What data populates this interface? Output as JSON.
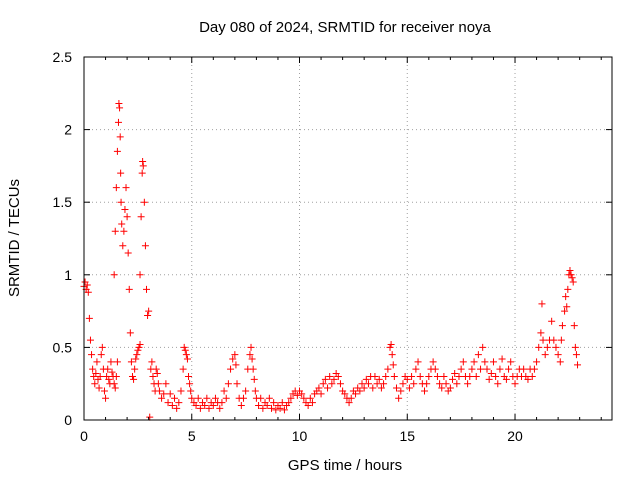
{
  "chart_data": {
    "type": "scatter",
    "title": "Day 080 of 2024, SRMTID for receiver noya",
    "xlabel": "GPS time / hours",
    "ylabel": "SRMTID / TECUs",
    "xlim": [
      0,
      24.5
    ],
    "ylim": [
      0,
      2.5
    ],
    "grid": true,
    "marker": "+",
    "marker_color": "#ff0000",
    "x_ticks": [
      {
        "value": 0,
        "label": "0"
      },
      {
        "value": 5,
        "label": "5"
      },
      {
        "value": 10,
        "label": "10"
      },
      {
        "value": 15,
        "label": "15"
      },
      {
        "value": 20,
        "label": "20"
      }
    ],
    "y_ticks": [
      {
        "value": 0,
        "label": "0"
      },
      {
        "value": 0.5,
        "label": "0.5"
      },
      {
        "value": 1,
        "label": "1"
      },
      {
        "value": 1.5,
        "label": "1.5"
      },
      {
        "value": 2,
        "label": "2"
      },
      {
        "value": 2.5,
        "label": "2.5"
      }
    ],
    "series": [
      {
        "name": "SRMTID",
        "points": [
          [
            0.0,
            0.92
          ],
          [
            0.05,
            0.95
          ],
          [
            0.1,
            0.9
          ],
          [
            0.15,
            0.93
          ],
          [
            0.2,
            0.88
          ],
          [
            0.25,
            0.7
          ],
          [
            0.3,
            0.55
          ],
          [
            0.35,
            0.45
          ],
          [
            0.4,
            0.35
          ],
          [
            0.45,
            0.3
          ],
          [
            0.5,
            0.25
          ],
          [
            0.55,
            0.32
          ],
          [
            0.6,
            0.4
          ],
          [
            0.65,
            0.28
          ],
          [
            0.7,
            0.22
          ],
          [
            0.75,
            0.3
          ],
          [
            0.8,
            0.45
          ],
          [
            0.85,
            0.5
          ],
          [
            0.9,
            0.35
          ],
          [
            0.95,
            0.2
          ],
          [
            1.0,
            0.15
          ],
          [
            1.05,
            0.3
          ],
          [
            1.1,
            0.35
          ],
          [
            1.15,
            0.28
          ],
          [
            1.2,
            0.25
          ],
          [
            1.25,
            0.4
          ],
          [
            1.3,
            0.33
          ],
          [
            1.35,
            0.3
          ],
          [
            1.4,
            0.25
          ],
          [
            1.45,
            0.22
          ],
          [
            1.5,
            0.3
          ],
          [
            1.55,
            0.4
          ],
          [
            1.4,
            1.0
          ],
          [
            1.45,
            1.3
          ],
          [
            1.5,
            1.6
          ],
          [
            1.55,
            1.85
          ],
          [
            1.6,
            2.05
          ],
          [
            1.62,
            2.18
          ],
          [
            1.65,
            2.15
          ],
          [
            1.68,
            1.95
          ],
          [
            1.7,
            1.7
          ],
          [
            1.72,
            1.5
          ],
          [
            1.75,
            1.35
          ],
          [
            1.8,
            1.2
          ],
          [
            1.85,
            1.3
          ],
          [
            1.9,
            1.45
          ],
          [
            1.95,
            1.6
          ],
          [
            2.0,
            1.4
          ],
          [
            2.05,
            1.15
          ],
          [
            2.1,
            0.9
          ],
          [
            2.15,
            0.6
          ],
          [
            2.2,
            0.4
          ],
          [
            2.25,
            0.3
          ],
          [
            2.3,
            0.28
          ],
          [
            2.35,
            0.35
          ],
          [
            2.4,
            0.42
          ],
          [
            2.45,
            0.45
          ],
          [
            2.5,
            0.48
          ],
          [
            2.55,
            0.5
          ],
          [
            2.6,
            0.52
          ],
          [
            2.6,
            1.0
          ],
          [
            2.65,
            1.4
          ],
          [
            2.7,
            1.7
          ],
          [
            2.72,
            1.78
          ],
          [
            2.75,
            1.75
          ],
          [
            2.8,
            1.5
          ],
          [
            2.85,
            1.2
          ],
          [
            2.9,
            0.9
          ],
          [
            2.95,
            0.72
          ],
          [
            3.0,
            0.75
          ],
          [
            3.05,
            0.02
          ],
          [
            3.1,
            0.35
          ],
          [
            3.15,
            0.4
          ],
          [
            3.2,
            0.3
          ],
          [
            3.25,
            0.25
          ],
          [
            3.3,
            0.2
          ],
          [
            3.35,
            0.35
          ],
          [
            3.4,
            0.32
          ],
          [
            3.45,
            0.25
          ],
          [
            3.5,
            0.2
          ],
          [
            3.6,
            0.15
          ],
          [
            3.7,
            0.18
          ],
          [
            3.8,
            0.25
          ],
          [
            3.9,
            0.12
          ],
          [
            4.0,
            0.18
          ],
          [
            4.1,
            0.1
          ],
          [
            4.2,
            0.15
          ],
          [
            4.3,
            0.08
          ],
          [
            4.4,
            0.12
          ],
          [
            4.5,
            0.2
          ],
          [
            4.6,
            0.35
          ],
          [
            4.65,
            0.5
          ],
          [
            4.7,
            0.48
          ],
          [
            4.75,
            0.45
          ],
          [
            4.8,
            0.42
          ],
          [
            4.85,
            0.3
          ],
          [
            4.9,
            0.25
          ],
          [
            4.95,
            0.2
          ],
          [
            5.0,
            0.15
          ],
          [
            5.1,
            0.12
          ],
          [
            5.2,
            0.1
          ],
          [
            5.3,
            0.15
          ],
          [
            5.4,
            0.08
          ],
          [
            5.5,
            0.12
          ],
          [
            5.6,
            0.1
          ],
          [
            5.7,
            0.15
          ],
          [
            5.8,
            0.08
          ],
          [
            5.9,
            0.12
          ],
          [
            6.0,
            0.1
          ],
          [
            6.1,
            0.15
          ],
          [
            6.2,
            0.12
          ],
          [
            6.3,
            0.08
          ],
          [
            6.4,
            0.12
          ],
          [
            6.5,
            0.2
          ],
          [
            6.6,
            0.15
          ],
          [
            6.7,
            0.25
          ],
          [
            6.8,
            0.35
          ],
          [
            6.9,
            0.42
          ],
          [
            7.0,
            0.45
          ],
          [
            7.05,
            0.38
          ],
          [
            7.1,
            0.25
          ],
          [
            7.2,
            0.15
          ],
          [
            7.3,
            0.1
          ],
          [
            7.4,
            0.15
          ],
          [
            7.5,
            0.2
          ],
          [
            7.6,
            0.35
          ],
          [
            7.7,
            0.45
          ],
          [
            7.75,
            0.5
          ],
          [
            7.8,
            0.42
          ],
          [
            7.85,
            0.35
          ],
          [
            7.9,
            0.28
          ],
          [
            7.95,
            0.2
          ],
          [
            8.0,
            0.15
          ],
          [
            8.1,
            0.1
          ],
          [
            8.2,
            0.15
          ],
          [
            8.3,
            0.08
          ],
          [
            8.4,
            0.12
          ],
          [
            8.5,
            0.1
          ],
          [
            8.6,
            0.15
          ],
          [
            8.7,
            0.08
          ],
          [
            8.8,
            0.12
          ],
          [
            8.9,
            0.07
          ],
          [
            9.0,
            0.1
          ],
          [
            9.1,
            0.08
          ],
          [
            9.2,
            0.12
          ],
          [
            9.3,
            0.07
          ],
          [
            9.4,
            0.1
          ],
          [
            9.5,
            0.12
          ],
          [
            9.6,
            0.15
          ],
          [
            9.7,
            0.18
          ],
          [
            9.8,
            0.2
          ],
          [
            9.9,
            0.17
          ],
          [
            10.0,
            0.2
          ],
          [
            10.1,
            0.18
          ],
          [
            10.2,
            0.15
          ],
          [
            10.3,
            0.12
          ],
          [
            10.4,
            0.1
          ],
          [
            10.5,
            0.15
          ],
          [
            10.6,
            0.12
          ],
          [
            10.7,
            0.18
          ],
          [
            10.8,
            0.2
          ],
          [
            10.9,
            0.22
          ],
          [
            11.0,
            0.18
          ],
          [
            11.1,
            0.25
          ],
          [
            11.2,
            0.28
          ],
          [
            11.3,
            0.22
          ],
          [
            11.4,
            0.3
          ],
          [
            11.5,
            0.25
          ],
          [
            11.6,
            0.28
          ],
          [
            11.7,
            0.32
          ],
          [
            11.8,
            0.3
          ],
          [
            11.9,
            0.25
          ],
          [
            12.0,
            0.2
          ],
          [
            12.1,
            0.18
          ],
          [
            12.2,
            0.15
          ],
          [
            12.3,
            0.12
          ],
          [
            12.4,
            0.15
          ],
          [
            12.5,
            0.2
          ],
          [
            12.6,
            0.18
          ],
          [
            12.7,
            0.22
          ],
          [
            12.8,
            0.2
          ],
          [
            12.9,
            0.25
          ],
          [
            13.0,
            0.22
          ],
          [
            13.1,
            0.28
          ],
          [
            13.2,
            0.25
          ],
          [
            13.3,
            0.3
          ],
          [
            13.4,
            0.22
          ],
          [
            13.5,
            0.3
          ],
          [
            13.6,
            0.25
          ],
          [
            13.7,
            0.28
          ],
          [
            13.8,
            0.22
          ],
          [
            13.9,
            0.25
          ],
          [
            14.0,
            0.3
          ],
          [
            14.1,
            0.35
          ],
          [
            14.2,
            0.5
          ],
          [
            14.25,
            0.52
          ],
          [
            14.3,
            0.45
          ],
          [
            14.35,
            0.38
          ],
          [
            14.4,
            0.3
          ],
          [
            14.5,
            0.22
          ],
          [
            14.6,
            0.15
          ],
          [
            14.7,
            0.2
          ],
          [
            14.8,
            0.25
          ],
          [
            14.9,
            0.3
          ],
          [
            15.0,
            0.28
          ],
          [
            15.1,
            0.22
          ],
          [
            15.2,
            0.3
          ],
          [
            15.3,
            0.25
          ],
          [
            15.4,
            0.35
          ],
          [
            15.5,
            0.4
          ],
          [
            15.6,
            0.3
          ],
          [
            15.7,
            0.25
          ],
          [
            15.8,
            0.2
          ],
          [
            15.9,
            0.25
          ],
          [
            16.0,
            0.3
          ],
          [
            16.1,
            0.35
          ],
          [
            16.2,
            0.4
          ],
          [
            16.3,
            0.35
          ],
          [
            16.4,
            0.3
          ],
          [
            16.5,
            0.25
          ],
          [
            16.6,
            0.22
          ],
          [
            16.7,
            0.3
          ],
          [
            16.8,
            0.25
          ],
          [
            16.9,
            0.2
          ],
          [
            17.0,
            0.22
          ],
          [
            17.1,
            0.28
          ],
          [
            17.2,
            0.32
          ],
          [
            17.3,
            0.25
          ],
          [
            17.4,
            0.3
          ],
          [
            17.5,
            0.35
          ],
          [
            17.6,
            0.4
          ],
          [
            17.7,
            0.3
          ],
          [
            17.8,
            0.25
          ],
          [
            17.9,
            0.3
          ],
          [
            18.0,
            0.35
          ],
          [
            18.1,
            0.4
          ],
          [
            18.2,
            0.3
          ],
          [
            18.3,
            0.45
          ],
          [
            18.4,
            0.35
          ],
          [
            18.5,
            0.5
          ],
          [
            18.6,
            0.4
          ],
          [
            18.7,
            0.35
          ],
          [
            18.8,
            0.28
          ],
          [
            18.9,
            0.32
          ],
          [
            19.0,
            0.4
          ],
          [
            19.1,
            0.3
          ],
          [
            19.2,
            0.25
          ],
          [
            19.3,
            0.35
          ],
          [
            19.4,
            0.42
          ],
          [
            19.5,
            0.3
          ],
          [
            19.6,
            0.28
          ],
          [
            19.7,
            0.35
          ],
          [
            19.8,
            0.4
          ],
          [
            19.9,
            0.3
          ],
          [
            20.0,
            0.25
          ],
          [
            20.1,
            0.3
          ],
          [
            20.2,
            0.35
          ],
          [
            20.3,
            0.3
          ],
          [
            20.4,
            0.35
          ],
          [
            20.5,
            0.3
          ],
          [
            20.6,
            0.28
          ],
          [
            20.7,
            0.35
          ],
          [
            20.8,
            0.3
          ],
          [
            20.9,
            0.35
          ],
          [
            21.0,
            0.4
          ],
          [
            21.1,
            0.5
          ],
          [
            21.2,
            0.6
          ],
          [
            21.25,
            0.8
          ],
          [
            21.3,
            0.55
          ],
          [
            21.4,
            0.45
          ],
          [
            21.5,
            0.5
          ],
          [
            21.6,
            0.55
          ],
          [
            21.7,
            0.68
          ],
          [
            21.8,
            0.55
          ],
          [
            21.9,
            0.5
          ],
          [
            22.0,
            0.45
          ],
          [
            22.1,
            0.4
          ],
          [
            22.15,
            0.55
          ],
          [
            22.2,
            0.65
          ],
          [
            22.3,
            0.75
          ],
          [
            22.35,
            0.85
          ],
          [
            22.4,
            0.78
          ],
          [
            22.45,
            0.9
          ],
          [
            22.5,
            1.0
          ],
          [
            22.55,
            1.03
          ],
          [
            22.6,
            1.0
          ],
          [
            22.65,
            0.98
          ],
          [
            22.7,
            0.95
          ],
          [
            22.75,
            0.65
          ],
          [
            22.8,
            0.5
          ],
          [
            22.85,
            0.45
          ],
          [
            22.9,
            0.38
          ]
        ]
      }
    ]
  }
}
